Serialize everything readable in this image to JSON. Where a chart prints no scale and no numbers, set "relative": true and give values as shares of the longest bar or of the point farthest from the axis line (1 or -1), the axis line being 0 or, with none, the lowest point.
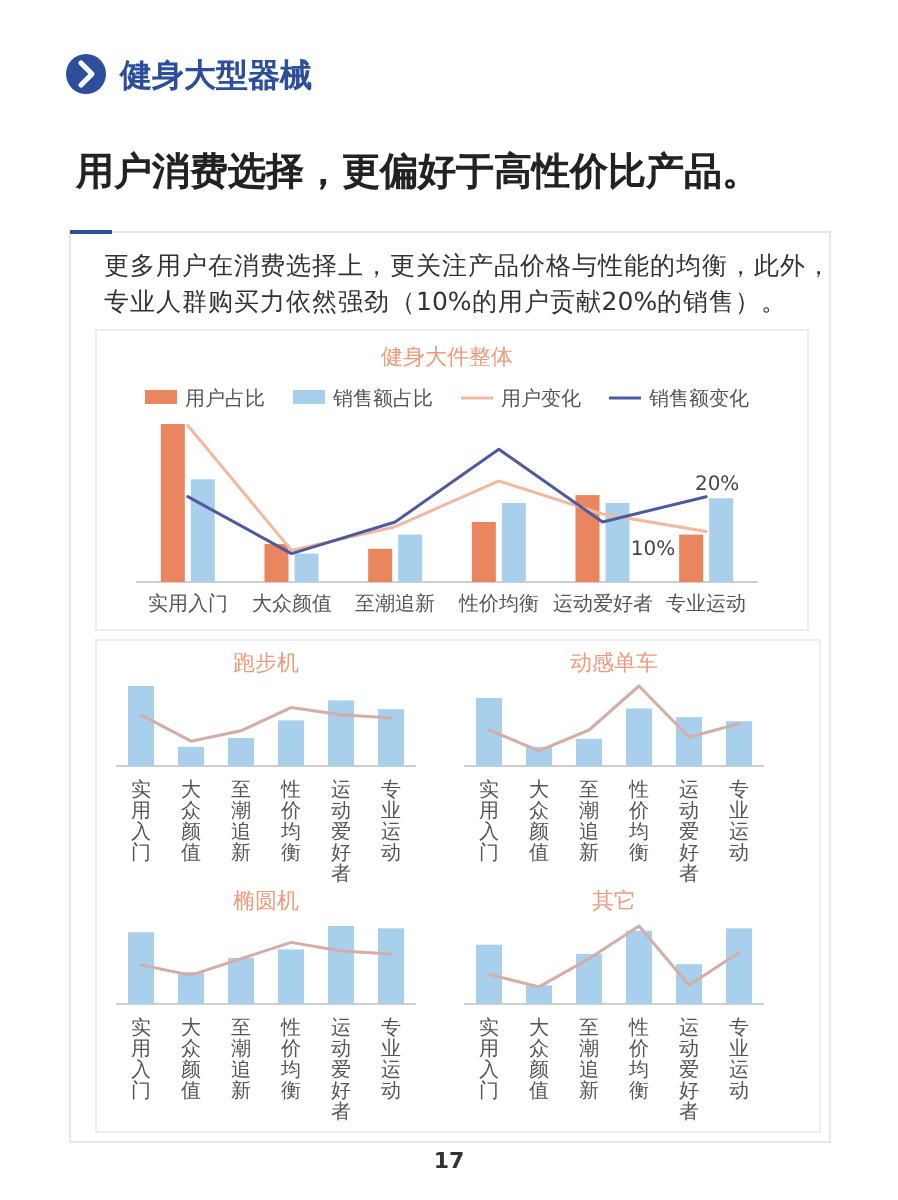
{
  "chart_data": [
    {
      "type": "other",
      "title": "健身大型器械",
      "subtitle": "用户消费选择，更偏好于高性价比产品。",
      "annotations": [
        "更多用户在消费选择上，更关注产品价格与性能的均衡，此外，专业人群购买力依然强劲（10%的用户贡献20%的销售）。",
        "17"
      ]
    },
    {
      "type": "bar",
      "title": "健身大件整体",
      "categories": [
        "实用入门",
        "大众颜值",
        "至潮追新",
        "性价均衡",
        "运动爱好者",
        "专业运动"
      ],
      "relative": true,
      "legend": "top",
      "series": [
        {
          "name": "用户占比",
          "color": "#e98660",
          "values": [
            1,
            0.24,
            0.21,
            0.38,
            0.55,
            0.3
          ]
        },
        {
          "name": "销售额占比",
          "color": "#a8d0ec",
          "values": [
            0.65,
            0.18,
            0.3,
            0.5,
            0.5,
            0.53
          ]
        },
        {
          "name": "用户变化",
          "type": "line",
          "color": "#f2b8a0",
          "values": [
            0.99,
            0.2,
            0.35,
            0.64,
            0.43,
            0.32
          ]
        },
        {
          "name": "销售额变化",
          "type": "line",
          "color": "#4d5b9e",
          "values": [
            0.54,
            0.18,
            0.38,
            0.84,
            0.38,
            0.54
          ]
        }
      ],
      "annotations": [
        {
          "text": "20%",
          "x": "专业运动",
          "y": 0.53
        },
        {
          "text": "10%",
          "x": "专业运动",
          "y": 0.3
        }
      ]
    },
    {
      "type": "bar",
      "title": "跑步机",
      "categories": [
        "实用入门",
        "大众颜值",
        "至潮追新",
        "性价均衡",
        "运动爱好者",
        "专业运动"
      ],
      "relative": true,
      "series": [
        {
          "color": "#a8d0ec",
          "values": [
            1,
            0.24,
            0.35,
            0.57,
            0.82,
            0.71
          ]
        },
        {
          "type": "line",
          "color": "#d4aea6",
          "values": [
            0.64,
            0.31,
            0.44,
            0.73,
            0.64,
            0.6
          ]
        }
      ]
    },
    {
      "type": "bar",
      "title": "动感单车",
      "categories": [
        "实用入门",
        "大众颜值",
        "至潮追新",
        "性价均衡",
        "运动爱好者",
        "专业运动"
      ],
      "relative": true,
      "series": [
        {
          "color": "#a8d0ec",
          "values": [
            0.85,
            0.24,
            0.34,
            0.72,
            0.61,
            0.56
          ]
        },
        {
          "type": "line",
          "color": "#d4aea6",
          "values": [
            0.45,
            0.19,
            0.45,
            1,
            0.36,
            0.53
          ]
        }
      ]
    },
    {
      "type": "bar",
      "title": "椭圆机",
      "categories": [
        "实用入门",
        "大众颜值",
        "至潮追新",
        "性价均衡",
        "运动爱好者",
        "专业运动"
      ],
      "relative": true,
      "series": [
        {
          "color": "#a8d0ec",
          "values": [
            0.92,
            0.41,
            0.59,
            0.7,
            1,
            0.97
          ]
        },
        {
          "type": "line",
          "color": "#d4aea6",
          "values": [
            0.5,
            0.37,
            0.58,
            0.79,
            0.68,
            0.64
          ]
        }
      ]
    },
    {
      "type": "bar",
      "title": "其它",
      "categories": [
        "实用入门",
        "大众颜值",
        "至潮追新",
        "性价均衡",
        "运动爱好者",
        "专业运动"
      ],
      "relative": true,
      "series": [
        {
          "color": "#a8d0ec",
          "values": [
            0.76,
            0.24,
            0.64,
            0.94,
            0.51,
            0.97
          ]
        },
        {
          "type": "line",
          "color": "#d4aea6",
          "values": [
            0.38,
            0.22,
            0.58,
            1,
            0.24,
            0.66
          ]
        }
      ]
    }
  ]
}
